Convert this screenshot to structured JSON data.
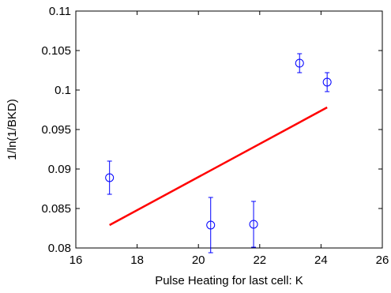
{
  "chart_data": {
    "type": "scatter",
    "xlabel": "Pulse Heating for last cell: K",
    "ylabel": "1/ln(1/BKD)",
    "xlim": [
      16,
      26
    ],
    "ylim": [
      0.08,
      0.11
    ],
    "x_ticks": [
      16,
      18,
      20,
      22,
      24,
      26
    ],
    "y_ticks": [
      0.08,
      0.085,
      0.09,
      0.095,
      0.1,
      0.105,
      0.11
    ],
    "x_tick_labels": [
      "16",
      "18",
      "20",
      "22",
      "24",
      "26"
    ],
    "y_tick_labels": [
      "0.08",
      "0.085",
      "0.09",
      "0.095",
      "0.1",
      "0.105",
      "0.11"
    ],
    "grid": false,
    "series": [
      {
        "type": "scatter-errorbar",
        "marker": "circle-open",
        "color": "#0000ff",
        "points": [
          {
            "x": 17.1,
            "y": 0.0889,
            "err": 0.0021
          },
          {
            "x": 20.4,
            "y": 0.0829,
            "err": 0.0035
          },
          {
            "x": 21.8,
            "y": 0.083,
            "err": 0.0029
          },
          {
            "x": 23.3,
            "y": 0.1034,
            "err": 0.0012
          },
          {
            "x": 24.2,
            "y": 0.101,
            "err": 0.0012
          }
        ]
      },
      {
        "type": "line",
        "color": "#ff0000",
        "x": [
          17.1,
          24.2
        ],
        "y": [
          0.0829,
          0.0978
        ]
      }
    ]
  }
}
